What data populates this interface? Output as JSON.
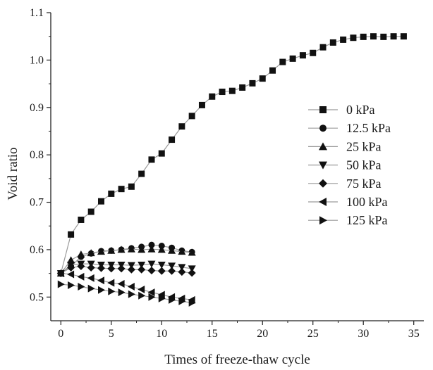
{
  "chart_data": {
    "type": "line",
    "xlabel": "Times of freeze-thaw cycle",
    "ylabel": "Void ratio",
    "xlim": [
      -1,
      36
    ],
    "ylim": [
      0.45,
      1.1
    ],
    "xticks": [
      "0",
      "5",
      "10",
      "15",
      "20",
      "25",
      "30",
      "35"
    ],
    "yticks": [
      "0.5",
      "0.6",
      "0.7",
      "0.8",
      "0.9",
      "1.0",
      "1.1"
    ],
    "grid": false,
    "legend_position": "right",
    "line_color": "#9a9a9a",
    "marker_color": "#111111",
    "series": [
      {
        "name": "0 kPa",
        "marker": "square",
        "x": [
          0,
          1,
          2,
          3,
          4,
          5,
          6,
          7,
          8,
          9,
          10,
          11,
          12,
          13,
          14,
          15,
          16,
          17,
          18,
          19,
          20,
          21,
          22,
          23,
          24,
          25,
          26,
          27,
          28,
          29,
          30,
          31,
          32,
          33,
          34
        ],
        "values": [
          0.55,
          0.632,
          0.663,
          0.68,
          0.702,
          0.718,
          0.728,
          0.733,
          0.76,
          0.79,
          0.803,
          0.832,
          0.86,
          0.882,
          0.905,
          0.923,
          0.933,
          0.935,
          0.942,
          0.951,
          0.961,
          0.978,
          0.996,
          1.003,
          1.01,
          1.015,
          1.027,
          1.037,
          1.043,
          1.047,
          1.049,
          1.05,
          1.049,
          1.05,
          1.05
        ]
      },
      {
        "name": "12.5 kPa",
        "marker": "circle",
        "x": [
          0,
          1,
          2,
          3,
          4,
          5,
          6,
          7,
          8,
          9,
          10,
          11,
          12,
          13
        ],
        "values": [
          0.55,
          0.565,
          0.585,
          0.592,
          0.597,
          0.598,
          0.6,
          0.603,
          0.606,
          0.61,
          0.608,
          0.604,
          0.598,
          0.595
        ]
      },
      {
        "name": "25 kPa",
        "marker": "triangle-up",
        "x": [
          0,
          1,
          2,
          3,
          4,
          5,
          6,
          7,
          8,
          9,
          10,
          11,
          12,
          13
        ],
        "values": [
          0.55,
          0.578,
          0.59,
          0.593,
          0.596,
          0.598,
          0.6,
          0.601,
          0.6,
          0.601,
          0.6,
          0.598,
          0.596,
          0.594
        ]
      },
      {
        "name": "50 kPa",
        "marker": "triangle-down",
        "x": [
          0,
          1,
          2,
          3,
          4,
          5,
          6,
          7,
          8,
          9,
          10,
          11,
          12,
          13
        ],
        "values": [
          0.55,
          0.568,
          0.57,
          0.57,
          0.568,
          0.568,
          0.568,
          0.567,
          0.568,
          0.57,
          0.568,
          0.566,
          0.563,
          0.56
        ]
      },
      {
        "name": "75 kPa",
        "marker": "diamond",
        "x": [
          0,
          1,
          2,
          3,
          4,
          5,
          6,
          7,
          8,
          9,
          10,
          11,
          12,
          13
        ],
        "values": [
          0.55,
          0.562,
          0.565,
          0.562,
          0.561,
          0.56,
          0.56,
          0.558,
          0.558,
          0.556,
          0.555,
          0.555,
          0.553,
          0.551
        ]
      },
      {
        "name": "100 kPa",
        "marker": "triangle-left",
        "x": [
          0,
          1,
          2,
          3,
          4,
          5,
          6,
          7,
          8,
          9,
          10,
          11,
          12,
          13
        ],
        "values": [
          0.55,
          0.548,
          0.543,
          0.54,
          0.535,
          0.53,
          0.528,
          0.522,
          0.516,
          0.51,
          0.505,
          0.5,
          0.497,
          0.494
        ]
      },
      {
        "name": "125 kPa",
        "marker": "triangle-right",
        "x": [
          0,
          1,
          2,
          3,
          4,
          5,
          6,
          7,
          8,
          9,
          10,
          11,
          12,
          13
        ],
        "values": [
          0.527,
          0.525,
          0.522,
          0.518,
          0.515,
          0.512,
          0.51,
          0.506,
          0.503,
          0.5,
          0.497,
          0.494,
          0.491,
          0.488
        ]
      }
    ]
  }
}
